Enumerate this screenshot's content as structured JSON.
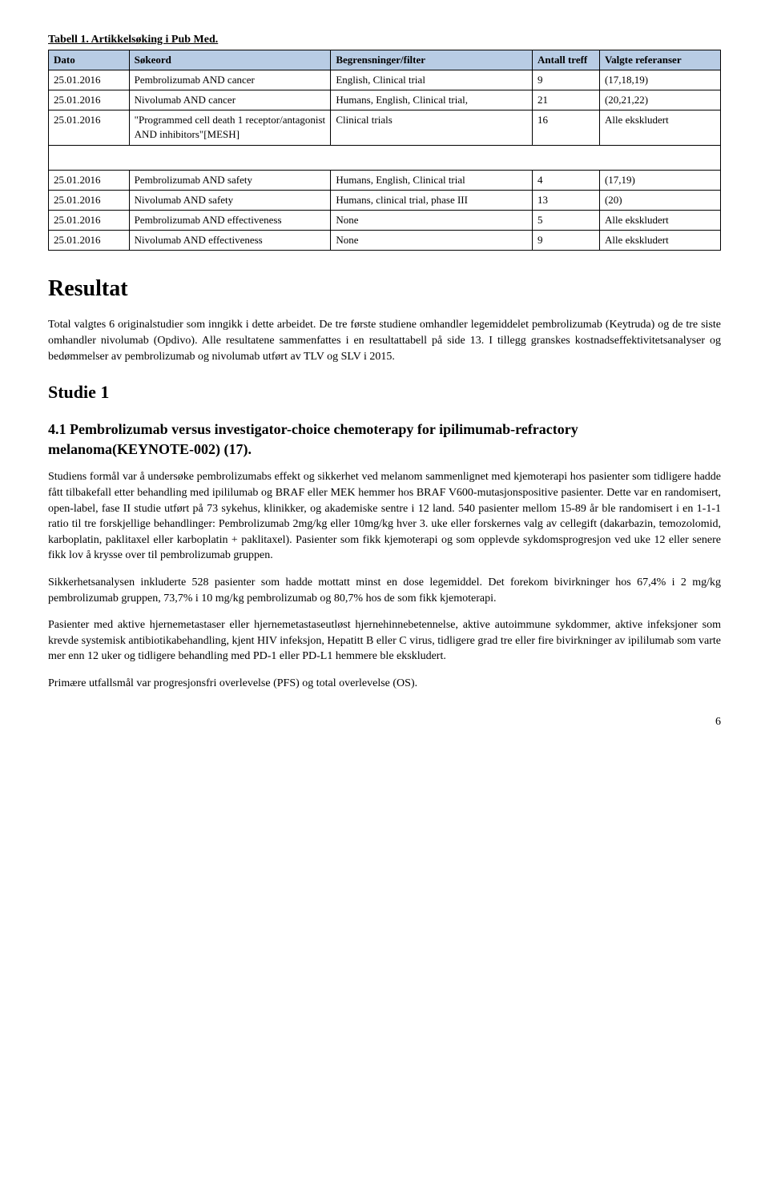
{
  "table_caption": "Tabell 1. Artikkelsøking i Pub Med.",
  "table": {
    "columns": [
      "Dato",
      "Søkeord",
      "Begrensninger/filter",
      "Antall treff",
      "Valgte referanser"
    ],
    "header_bg": "#b8cce4",
    "rows_top": [
      [
        "25.01.2016",
        "Pembrolizumab AND cancer",
        "English, Clinical trial",
        "9",
        "(17,18,19)"
      ],
      [
        "25.01.2016",
        "Nivolumab AND cancer",
        "Humans, English, Clinical trial,",
        "21",
        "(20,21,22)"
      ],
      [
        "25.01.2016",
        "\"Programmed cell death 1 receptor/antagonist AND inhibitors\"[MESH]",
        "Clinical trials",
        "16",
        "Alle ekskludert"
      ]
    ],
    "rows_bottom": [
      [
        "25.01.2016",
        "Pembrolizumab AND safety",
        "Humans, English, Clinical trial",
        "4",
        "(17,19)"
      ],
      [
        "25.01.2016",
        "Nivolumab AND safety",
        "Humans, clinical trial, phase III",
        "13",
        "(20)"
      ],
      [
        "25.01.2016",
        "Pembrolizumab AND effectiveness",
        "None",
        "5",
        "Alle ekskludert"
      ],
      [
        "25.01.2016",
        "Nivolumab AND effectiveness",
        "None",
        "9",
        "Alle ekskludert"
      ]
    ],
    "col_widths": [
      "12%",
      "30%",
      "30%",
      "10%",
      "18%"
    ]
  },
  "h1": "Resultat",
  "para1": "Total valgtes 6 originalstudier som inngikk i dette arbeidet. De tre første studiene omhandler legemiddelet pembrolizumab (Keytruda) og de tre siste omhandler nivolumab (Opdivo). Alle resultatene sammenfattes i en resultattabell på side 13. I tillegg granskes kostnadseffektivitetsanalyser og bedømmelser av pembrolizumab og nivolumab utført av TLV og SLV i 2015.",
  "h2": "Studie 1",
  "h3": "4.1 Pembrolizumab versus investigator-choice chemoterapy for ipilimumab-refractory melanoma(KEYNOTE-002) (17).",
  "para2": "Studiens formål var å undersøke pembrolizumabs effekt og sikkerhet ved melanom sammenlignet med kjemoterapi hos pasienter som tidligere hadde fått tilbakefall etter behandling med ipililumab og BRAF eller MEK hemmer hos BRAF V600-mutasjonspositive pasienter. Dette var en randomisert, open-label, fase II studie utført på 73 sykehus, klinikker, og akademiske sentre i 12 land. 540 pasienter mellom 15-89 år ble randomisert i en 1-1-1 ratio til tre forskjellige behandlinger: Pembrolizumab 2mg/kg eller 10mg/kg hver 3. uke eller forskernes valg av cellegift (dakarbazin, temozolomid, karboplatin, paklitaxel eller karboplatin + paklitaxel). Pasienter som fikk kjemoterapi og som opplevde sykdomsprogresjon ved uke 12 eller senere fikk lov å krysse over til pembrolizumab gruppen.",
  "para3": "Sikkerhetsanalysen inkluderte 528 pasienter som hadde mottatt minst en dose legemiddel. Det forekom bivirkninger hos 67,4% i 2 mg/kg pembrolizumab gruppen, 73,7% i 10 mg/kg pembrolizumab og 80,7% hos de som fikk kjemoterapi.",
  "para4": "Pasienter med aktive hjernemetastaser eller hjernemetastaseutløst hjernehinnebetennelse, aktive autoimmune sykdommer, aktive infeksjoner som krevde systemisk antibiotikabehandling, kjent HIV infeksjon, Hepatitt B eller C virus, tidligere grad tre eller fire bivirkninger av ipililumab som varte mer enn 12 uker og tidligere behandling med PD-1 eller PD-L1 hemmere ble ekskludert.",
  "para5": "Primære utfallsmål var progresjonsfri overlevelse (PFS) og total overlevelse (OS).",
  "page_number": "6"
}
